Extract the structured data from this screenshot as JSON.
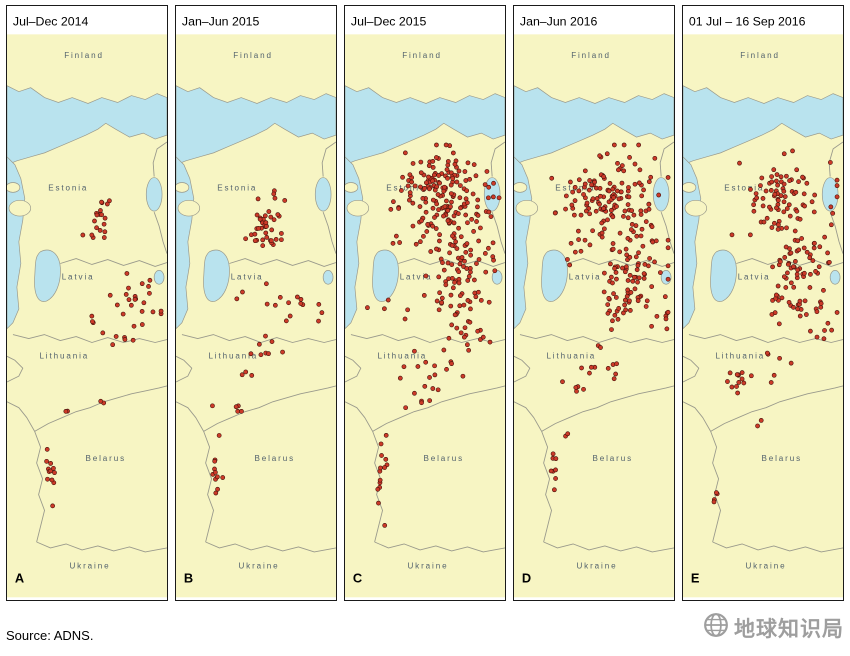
{
  "panels": [
    {
      "letter": "A",
      "title": "Jul–Dec 2014",
      "clusters": [
        [
          92,
          215,
          6,
          11,
          16
        ],
        [
          100,
          196,
          3,
          3,
          3
        ],
        [
          133,
          302,
          13,
          13,
          22
        ],
        [
          112,
          330,
          8,
          5,
          6
        ],
        [
          87,
          318,
          4,
          3,
          3
        ],
        [
          97,
          397,
          2,
          2,
          2
        ],
        [
          62,
          407,
          2,
          2,
          2
        ],
        [
          43,
          468,
          3,
          18,
          12
        ]
      ]
    },
    {
      "letter": "B",
      "title": "Jan–Jun 2015",
      "clusters": [
        [
          90,
          218,
          9,
          15,
          38
        ],
        [
          103,
          188,
          4,
          3,
          4
        ],
        [
          122,
          298,
          15,
          12,
          14
        ],
        [
          95,
          345,
          12,
          8,
          8
        ],
        [
          65,
          292,
          3,
          3,
          2
        ],
        [
          75,
          372,
          3,
          3,
          3
        ],
        [
          63,
          408,
          3,
          5,
          4
        ],
        [
          41,
          468,
          3,
          19,
          13
        ]
      ]
    },
    {
      "letter": "C",
      "title": "Jul–Dec 2015",
      "clusters": [
        [
          100,
          200,
          24,
          26,
          150
        ],
        [
          95,
          172,
          18,
          11,
          40
        ],
        [
          115,
          250,
          17,
          12,
          35
        ],
        [
          110,
          295,
          18,
          14,
          40
        ],
        [
          125,
          330,
          11,
          8,
          12
        ],
        [
          95,
          365,
          14,
          12,
          15
        ],
        [
          80,
          395,
          8,
          8,
          6
        ],
        [
          50,
          300,
          8,
          8,
          5
        ],
        [
          38,
          468,
          4,
          21,
          14
        ]
      ]
    },
    {
      "letter": "D",
      "title": "Jan–Jun 2016",
      "clusters": [
        [
          105,
          195,
          25,
          25,
          140
        ],
        [
          120,
          260,
          17,
          13,
          50
        ],
        [
          115,
          300,
          17,
          12,
          35
        ],
        [
          60,
          250,
          8,
          10,
          8
        ],
        [
          90,
          360,
          14,
          10,
          12
        ],
        [
          65,
          385,
          5,
          5,
          4
        ],
        [
          150,
          315,
          4,
          9,
          6
        ],
        [
          42,
          472,
          3,
          13,
          8
        ],
        [
          55,
          430,
          3,
          3,
          2
        ]
      ]
    },
    {
      "letter": "E",
      "title": "01 Jul – 16 Sep 2016",
      "clusters": [
        [
          105,
          190,
          23,
          21,
          90
        ],
        [
          120,
          255,
          17,
          12,
          40
        ],
        [
          115,
          295,
          17,
          13,
          35
        ],
        [
          140,
          330,
          7,
          6,
          6
        ],
        [
          55,
          375,
          7,
          9,
          13
        ],
        [
          90,
          360,
          9,
          8,
          6
        ],
        [
          30,
          492,
          3,
          6,
          4
        ],
        [
          75,
          420,
          3,
          3,
          2
        ]
      ]
    }
  ],
  "map_labels": {
    "finland": "Finland",
    "estonia": "Estonia",
    "latvia": "Latvia",
    "lithuania": "Lithuania",
    "belarus": "Belarus",
    "ukraine": "Ukraine"
  },
  "source": "Source: ADNS.",
  "watermark": {
    "icon": "globe-icon",
    "text": "地球知识局"
  },
  "colors": {
    "land": "#f7f5c3",
    "sea": "#b9e3ee",
    "coast": "#9a9a8c",
    "label": "#53626d",
    "dot_fill": "#cc3a28",
    "dot_stroke": "#40100a",
    "watermark": "#9e9e9e"
  }
}
